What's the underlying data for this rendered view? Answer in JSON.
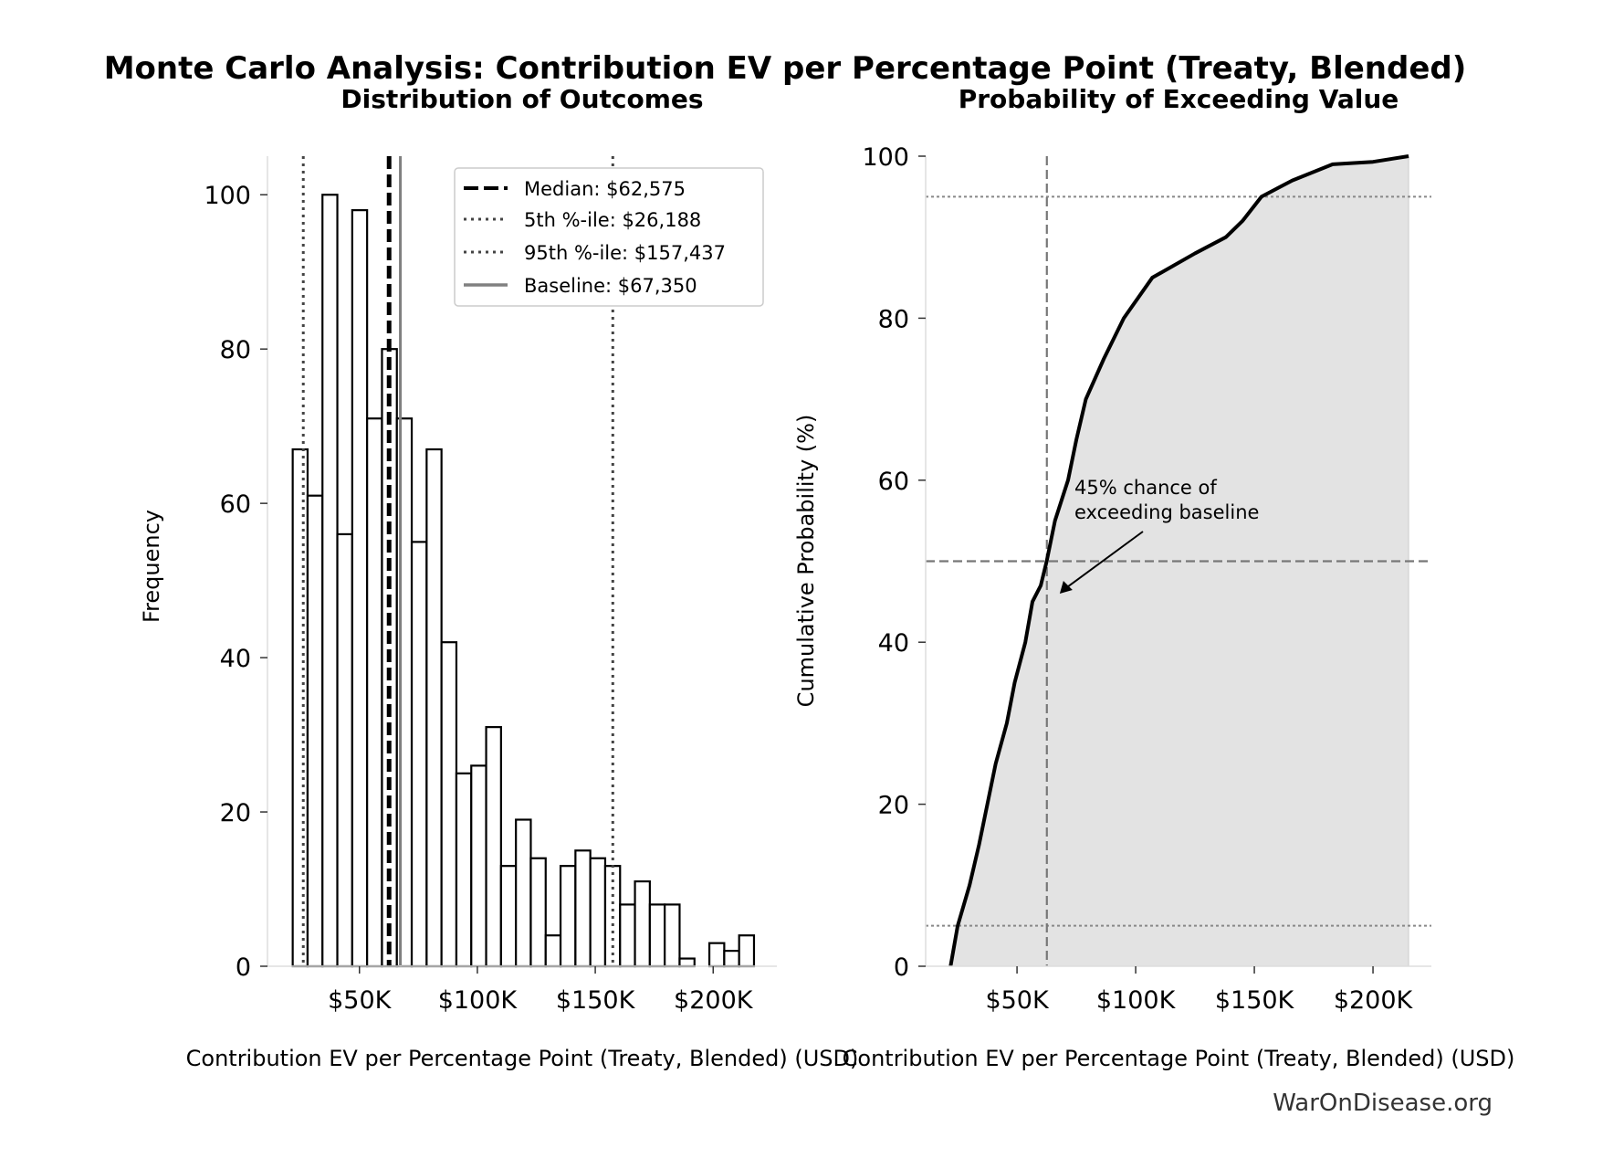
{
  "title": "Monte Carlo Analysis: Contribution EV per Percentage Point (Treaty, Blended)",
  "watermark": "WarOnDisease.org",
  "chart_data": [
    {
      "type": "bar",
      "title": "Distribution of Outcomes",
      "xlabel": "Contribution EV per Percentage Point (Treaty, Blended) (USD)",
      "ylabel": "Frequency",
      "xlim": [
        11000,
        227000
      ],
      "ylim": [
        0,
        105
      ],
      "xticks": [
        {
          "v": 50000,
          "label": "$50K"
        },
        {
          "v": 100000,
          "label": "$100K"
        },
        {
          "v": 150000,
          "label": "$150K"
        },
        {
          "v": 200000,
          "label": "$200K"
        }
      ],
      "yticks": [
        {
          "v": 0,
          "label": "0"
        },
        {
          "v": 20,
          "label": "20"
        },
        {
          "v": 40,
          "label": "40"
        },
        {
          "v": 60,
          "label": "60"
        },
        {
          "v": 80,
          "label": "80"
        },
        {
          "v": 100,
          "label": "100"
        }
      ],
      "bin_start": 21700,
      "bin_width": 6310,
      "values": [
        67,
        61,
        100,
        56,
        98,
        71,
        80,
        71,
        55,
        67,
        42,
        25,
        26,
        31,
        13,
        19,
        14,
        4,
        13,
        15,
        14,
        13,
        8,
        11,
        8,
        8,
        1,
        0,
        3,
        2,
        4
      ],
      "reference_lines": [
        {
          "label": "Median: $62,575",
          "value": 62575,
          "style": "dashed",
          "color": "#000000"
        },
        {
          "label": "5th %-ile: $26,188",
          "value": 26188,
          "style": "dotted",
          "color": "#444444"
        },
        {
          "label": "95th %-ile: $157,437",
          "value": 157437,
          "style": "dotted",
          "color": "#444444"
        },
        {
          "label": "Baseline: $67,350",
          "value": 67350,
          "style": "solid",
          "color": "#808080"
        }
      ],
      "legend_position": "top-right",
      "grid": false
    },
    {
      "type": "line",
      "title": "Probability of Exceeding Value",
      "xlabel": "Contribution EV per Percentage Point (Treaty, Blended) (USD)",
      "ylabel": "Cumulative Probability (%)",
      "xlim": [
        11500,
        224600
      ],
      "ylim": [
        0,
        100
      ],
      "xticks": [
        {
          "v": 50000,
          "label": "$50K"
        },
        {
          "v": 100000,
          "label": "$100K"
        },
        {
          "v": 150000,
          "label": "$150K"
        },
        {
          "v": 200000,
          "label": "$200K"
        }
      ],
      "yticks": [
        {
          "v": 0,
          "label": "0"
        },
        {
          "v": 20,
          "label": "20"
        },
        {
          "v": 40,
          "label": "40"
        },
        {
          "v": 60,
          "label": "60"
        },
        {
          "v": 80,
          "label": "80"
        },
        {
          "v": 100,
          "label": "100"
        }
      ],
      "x": [
        22000,
        25000,
        30000,
        34000,
        37500,
        41000,
        45700,
        49000,
        53500,
        56500,
        60000,
        62500,
        66000,
        71500,
        75000,
        79000,
        86600,
        95000,
        107000,
        125000,
        138000,
        145000,
        153000,
        166000,
        183000,
        200000,
        215000
      ],
      "y": [
        0,
        5,
        10,
        15,
        20,
        25,
        30,
        35,
        40,
        45,
        47,
        50,
        55,
        60,
        65,
        70,
        75,
        80,
        85,
        88,
        90,
        92,
        95,
        97,
        99,
        99.3,
        100
      ],
      "fill_color": "#e3e3e3",
      "hlines": [
        {
          "value": 95,
          "style": "dotted"
        },
        {
          "value": 50,
          "style": "dashed"
        },
        {
          "value": 5,
          "style": "dotted"
        }
      ],
      "vline": {
        "value": 62575,
        "style": "dashed"
      },
      "annotation": {
        "lines": [
          "45% chance of",
          "exceeding baseline"
        ],
        "point": [
          68000,
          46
        ]
      },
      "grid": false
    }
  ]
}
